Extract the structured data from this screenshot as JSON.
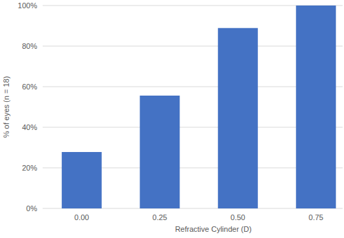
{
  "chart_data": {
    "type": "bar",
    "x_label": "Refractive Cylinder (D)",
    "y_label": "% of eyes (n = 18)",
    "categories": [
      "0.00",
      "0.25",
      "0.50",
      "0.75"
    ],
    "values": [
      27.8,
      55.6,
      88.9,
      100
    ],
    "color": "#4472c4",
    "ylim": [
      0,
      100
    ],
    "yticks": [
      {
        "value": 0,
        "label": "0%"
      },
      {
        "value": 20,
        "label": "20%"
      },
      {
        "value": 40,
        "label": "40%"
      },
      {
        "value": 60,
        "label": "60%"
      },
      {
        "value": 80,
        "label": "80%"
      },
      {
        "value": 100,
        "label": "100%"
      }
    ],
    "grid": true
  }
}
